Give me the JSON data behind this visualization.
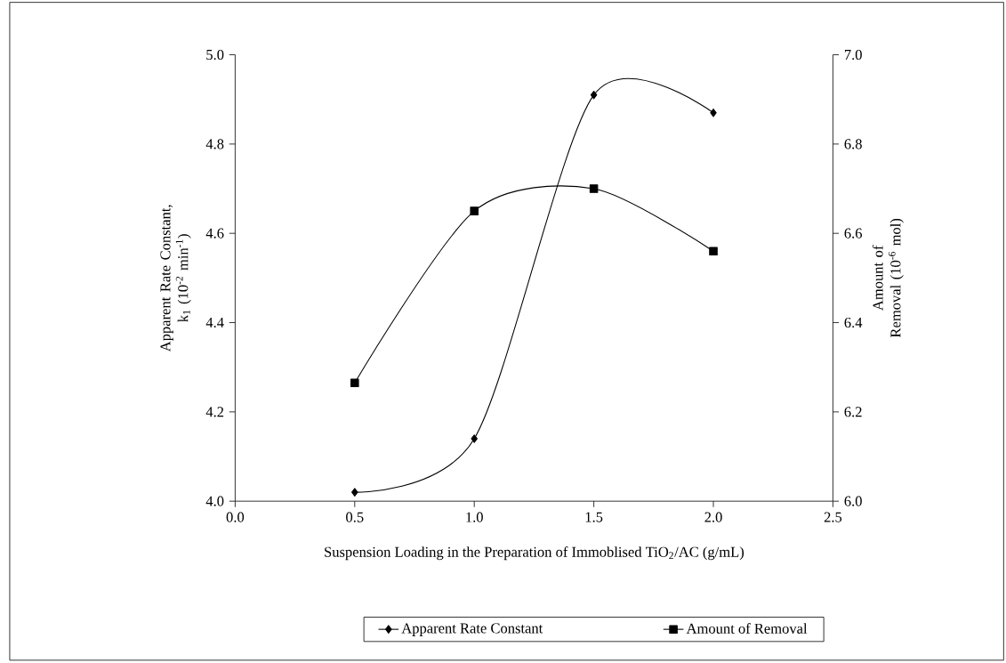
{
  "chart_data": {
    "type": "line",
    "xlabel": "Suspension Loading in the Preparation of Immoblised TiO$_{2}$/AC (g/mL)",
    "ylabel": "Apparent Rate Constant, k$_{1}$ (10$^{-2}$ min$^{-1}$)",
    "y2label": "Amount of Removal (10$^{-6}$ mol)",
    "x": [
      0.5,
      1.0,
      1.5,
      2.0
    ],
    "series": [
      {
        "name": "Apparent Rate Constant",
        "color": "#000000",
        "marker": "diamond",
        "values": [
          4.02,
          4.14,
          4.91,
          4.87
        ]
      },
      {
        "name": "Amount of Removal",
        "color": "#000000",
        "marker": "square",
        "axis": "y2",
        "values": [
          6.265,
          6.65,
          6.7,
          6.56
        ]
      }
    ],
    "xlim": [
      0,
      2.5
    ],
    "xticks": [
      {
        "value": 0,
        "label": "0.0"
      },
      0.5,
      {
        "value": 1,
        "label": "1.0"
      },
      1.5,
      {
        "value": 2,
        "label": "2.0"
      },
      2.5
    ],
    "ylim": [
      4,
      5
    ],
    "yticks": [
      {
        "value": 4,
        "label": "4.0"
      },
      4.2,
      4.4,
      4.6,
      4.8,
      {
        "value": 5,
        "label": "5.0"
      }
    ],
    "y2lim": [
      6,
      7
    ],
    "y2ticks": [
      {
        "value": 6,
        "label": "6.0"
      },
      6.2,
      6.4,
      6.6,
      6.8,
      {
        "value": 7,
        "label": "7.0"
      }
    ],
    "line_style": "solid",
    "grid": false,
    "legend": "bottom"
  }
}
